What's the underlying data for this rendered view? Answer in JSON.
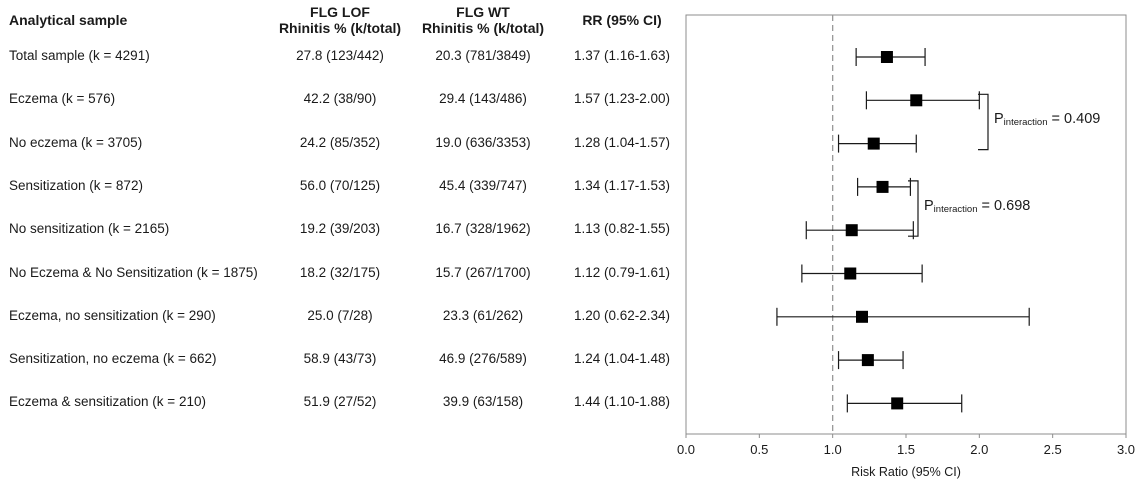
{
  "headers": {
    "sample": "Analytical sample",
    "lof_line1": "FLG LOF",
    "lof_line2": "Rhinitis % (k/total)",
    "wt_line1": "FLG WT",
    "wt_line2": "Rhinitis % (k/total)",
    "rr": "RR (95% CI)"
  },
  "rows": [
    {
      "label": "Total sample (k = 4291)",
      "lof": "27.8 (123/442)",
      "wt": "20.3 (781/3849)",
      "rr": "1.37 (1.16-1.63)"
    },
    {
      "label": "Eczema (k = 576)",
      "lof": "42.2 (38/90)",
      "wt": "29.4 (143/486)",
      "rr": "1.57 (1.23-2.00)"
    },
    {
      "label": "No eczema (k = 3705)",
      "lof": "24.2 (85/352)",
      "wt": "19.0 (636/3353)",
      "rr": "1.28 (1.04-1.57)"
    },
    {
      "label": "Sensitization (k = 872)",
      "lof": "56.0 (70/125)",
      "wt": "45.4 (339/747)",
      "rr": "1.34 (1.17-1.53)"
    },
    {
      "label": "No sensitization (k = 2165)",
      "lof": "19.2 (39/203)",
      "wt": "16.7 (328/1962)",
      "rr": "1.13 (0.82-1.55)"
    },
    {
      "label": "No Eczema & No Sensitization (k = 1875)",
      "lof": "18.2 (32/175)",
      "wt": "15.7 (267/1700)",
      "rr": "1.12 (0.79-1.61)"
    },
    {
      "label": "Eczema, no sensitization (k = 290)",
      "lof": "25.0 (7/28)",
      "wt": "23.3 (61/262)",
      "rr": "1.20 (0.62-2.34)"
    },
    {
      "label": "Sensitization, no eczema (k = 662)",
      "lof": "58.9 (43/73)",
      "wt": "46.9 (276/589)",
      "rr": "1.24 (1.04-1.48)"
    },
    {
      "label": "Eczema & sensitization (k = 210)",
      "lof": "51.9 (27/52)",
      "wt": "39.9 (63/158)",
      "rr": "1.44 (1.10-1.88)"
    }
  ],
  "annotations": [
    {
      "p_prefix": "P",
      "p_sub": "interaction",
      "p_value": " = 0.409",
      "rows": [
        1,
        2
      ]
    },
    {
      "p_prefix": "P",
      "p_sub": "interaction",
      "p_value": " = 0.698",
      "rows": [
        3,
        4
      ]
    }
  ],
  "chart_data": {
    "type": "scatter",
    "xlabel": "Risk Ratio (95% CI)",
    "xlim": [
      0,
      3
    ],
    "xticks": [
      "0.0",
      "0.5",
      "1.0",
      "1.5",
      "2.0",
      "2.5",
      "3.0"
    ],
    "reference_line": 1.0,
    "points": [
      {
        "rr": 1.37,
        "lo": 1.16,
        "hi": 1.63
      },
      {
        "rr": 1.57,
        "lo": 1.23,
        "hi": 2.0
      },
      {
        "rr": 1.28,
        "lo": 1.04,
        "hi": 1.57
      },
      {
        "rr": 1.34,
        "lo": 1.17,
        "hi": 1.53
      },
      {
        "rr": 1.13,
        "lo": 0.82,
        "hi": 1.55
      },
      {
        "rr": 1.12,
        "lo": 0.79,
        "hi": 1.61
      },
      {
        "rr": 1.2,
        "lo": 0.62,
        "hi": 2.34
      },
      {
        "rr": 1.24,
        "lo": 1.04,
        "hi": 1.48
      },
      {
        "rr": 1.44,
        "lo": 1.1,
        "hi": 1.88
      }
    ],
    "colors": {
      "marker": "#000000",
      "ref_line": "#999999",
      "frame": "#8c8c8c"
    }
  }
}
